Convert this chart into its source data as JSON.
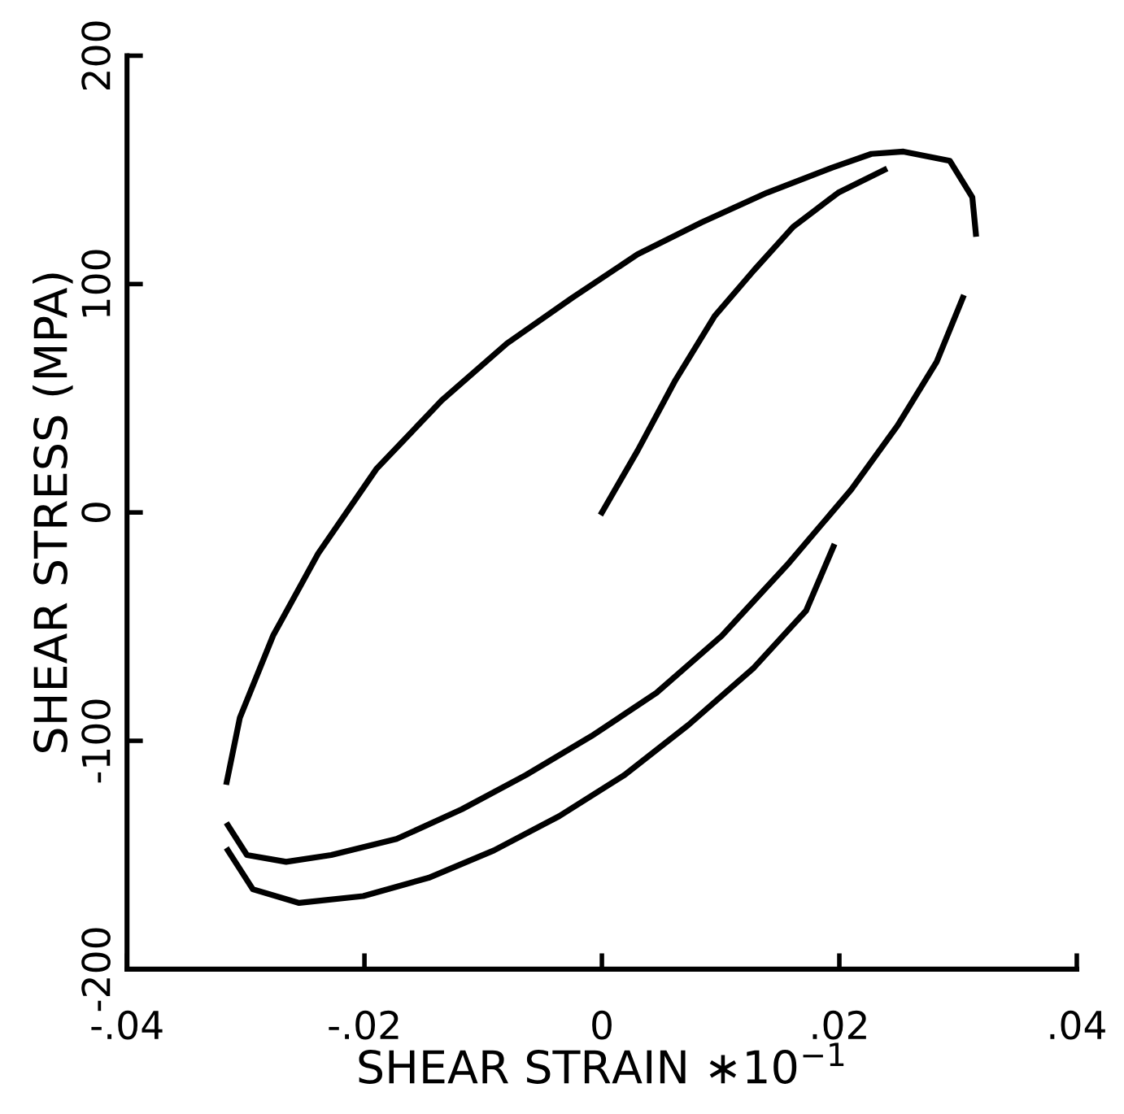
{
  "chart_data": {
    "type": "line",
    "xlabel": "SHEAR STRAIN ∗10$^{−1}$",
    "ylabel": "SHEAR STRESS (MPA)",
    "xlim": [
      -0.04,
      0.04
    ],
    "ylim": [
      -200,
      200
    ],
    "xticks": [
      {
        "value": -0.04,
        "label": "-.04"
      },
      {
        "value": -0.02,
        "label": "-.02"
      },
      0,
      {
        "value": 0.02,
        "label": ".02"
      },
      {
        "value": 0.04,
        "label": ".04"
      }
    ],
    "yticks": [
      -200,
      -100,
      0,
      100,
      200
    ],
    "grid": false,
    "legend": false,
    "marker": "none",
    "line_style": "solid",
    "series": [
      {
        "color": "#000000",
        "x": [
          0,
          0.003,
          0.0062,
          0.0095,
          0.0128,
          0.0161,
          0.0199,
          0.0238
        ],
        "values": [
          0,
          27,
          58,
          86,
          106,
          125,
          140,
          150
        ]
      },
      {
        "color": "#000000",
        "x": [
          -0.0316,
          -0.0305,
          -0.0277,
          -0.0239,
          -0.019,
          -0.0135,
          -0.008,
          -0.0025,
          0.003,
          0.0084,
          0.0139,
          0.0194,
          0.0227,
          0.0254,
          0.0293,
          0.0312,
          0.0315
        ],
        "values": [
          -118,
          -90,
          -54,
          -18,
          19,
          49,
          74,
          94,
          113,
          127,
          140,
          151,
          157,
          158,
          154,
          138,
          122
        ]
      },
      {
        "color": "#000000",
        "x": [
          -0.0315,
          -0.0299,
          -0.0266,
          -0.0228,
          -0.0173,
          -0.0118,
          -0.0064,
          -0.0009,
          0.0046,
          0.0101,
          0.0156,
          0.021,
          0.0249,
          0.0282,
          0.0304
        ],
        "values": [
          -137,
          -150,
          -153,
          -150,
          -143,
          -130,
          -115,
          -98,
          -79,
          -54,
          -23,
          10,
          38,
          66,
          94
        ]
      },
      {
        "color": "#000000",
        "x": [
          -0.0315,
          -0.0294,
          -0.0255,
          -0.0201,
          -0.0146,
          -0.0091,
          -0.0036,
          0.0019,
          0.0073,
          0.0128,
          0.0172,
          0.0195
        ],
        "values": [
          -148,
          -165,
          -171,
          -168,
          -160,
          -148,
          -133,
          -115,
          -93,
          -68,
          -43,
          -15
        ]
      }
    ]
  }
}
